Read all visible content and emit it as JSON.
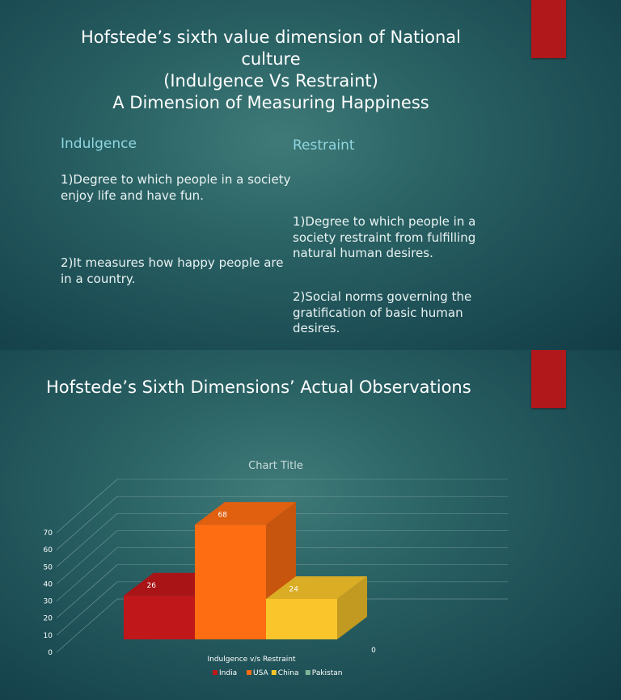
{
  "slide1": {
    "title_lines": [
      "Hofstede’s sixth value dimension of National",
      "culture",
      "(Indulgence Vs Restraint)",
      "A Dimension of Measuring Happiness"
    ],
    "left": {
      "heading": "Indulgence",
      "point1": "1)Degree to which people in a society enjoy life and have fun.",
      "point2": "2)It measures how happy people are in a country."
    },
    "right": {
      "heading": "Restraint",
      "point1": "1)Degree to which people in a society restraint from fulfilling natural human desires.",
      "point2": "2)Social norms governing the gratification of basic human desires."
    }
  },
  "slide2": {
    "title": "Hofstede’s Sixth Dimensions’ Actual Observations"
  },
  "colors": {
    "accent": "#b0181b",
    "India": "#c0171a",
    "USA": "#ff6d12",
    "China": "#f9c52a",
    "Pakistan": "#7fb59a"
  },
  "chart_data": {
    "type": "bar",
    "title": "Chart Title",
    "categories": [
      "Indulgence v/s Restraint"
    ],
    "series": [
      {
        "name": "India",
        "values": [
          26
        ]
      },
      {
        "name": "USA",
        "values": [
          68
        ]
      },
      {
        "name": "China",
        "values": [
          24
        ]
      },
      {
        "name": "Pakistan",
        "values": [
          0
        ]
      }
    ],
    "ylim": [
      0,
      70
    ],
    "yticks": [
      "0",
      "10",
      "20",
      "30",
      "40",
      "50",
      "60",
      "70"
    ],
    "data_labels": [
      "26",
      "68",
      "24",
      "0"
    ],
    "xlabel": "Indulgence v/s Restraint",
    "ylabel": "",
    "legend": "bottom",
    "grid": true,
    "style": "3d-clustered-column"
  }
}
